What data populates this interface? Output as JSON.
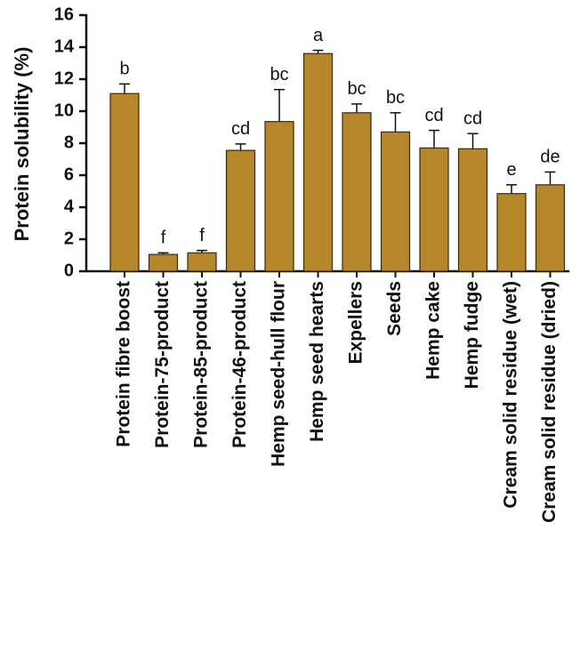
{
  "chart_data": {
    "type": "bar",
    "y_label": "Protein solubility (%)",
    "categories": [
      "Protein fibre boost",
      "Protein-75-product",
      "Protein-85-product",
      "Protein-46-product",
      "Hemp seed-hull flour",
      "Hemp seed hearts",
      "Expellers",
      "Seeds",
      "Hemp cake",
      "Hemp fudge",
      "Cream solid residue (wet)",
      "Cream solid residue (dried)"
    ],
    "values": [
      11.1,
      1.05,
      1.15,
      7.55,
      9.35,
      13.6,
      9.9,
      8.7,
      7.7,
      7.65,
      4.85,
      5.4
    ],
    "errors": [
      0.6,
      0.1,
      0.15,
      0.4,
      2.0,
      0.2,
      0.55,
      1.2,
      1.1,
      0.95,
      0.55,
      0.8
    ],
    "letters": [
      "b",
      "f",
      "f",
      "cd",
      "bc",
      "a",
      "bc",
      "bc",
      "cd",
      "cd",
      "e",
      "de"
    ],
    "color": "#b5862a",
    "ylim": [
      0,
      16
    ],
    "yticks": [
      0,
      2,
      4,
      6,
      8,
      10,
      12,
      14,
      16
    ]
  }
}
